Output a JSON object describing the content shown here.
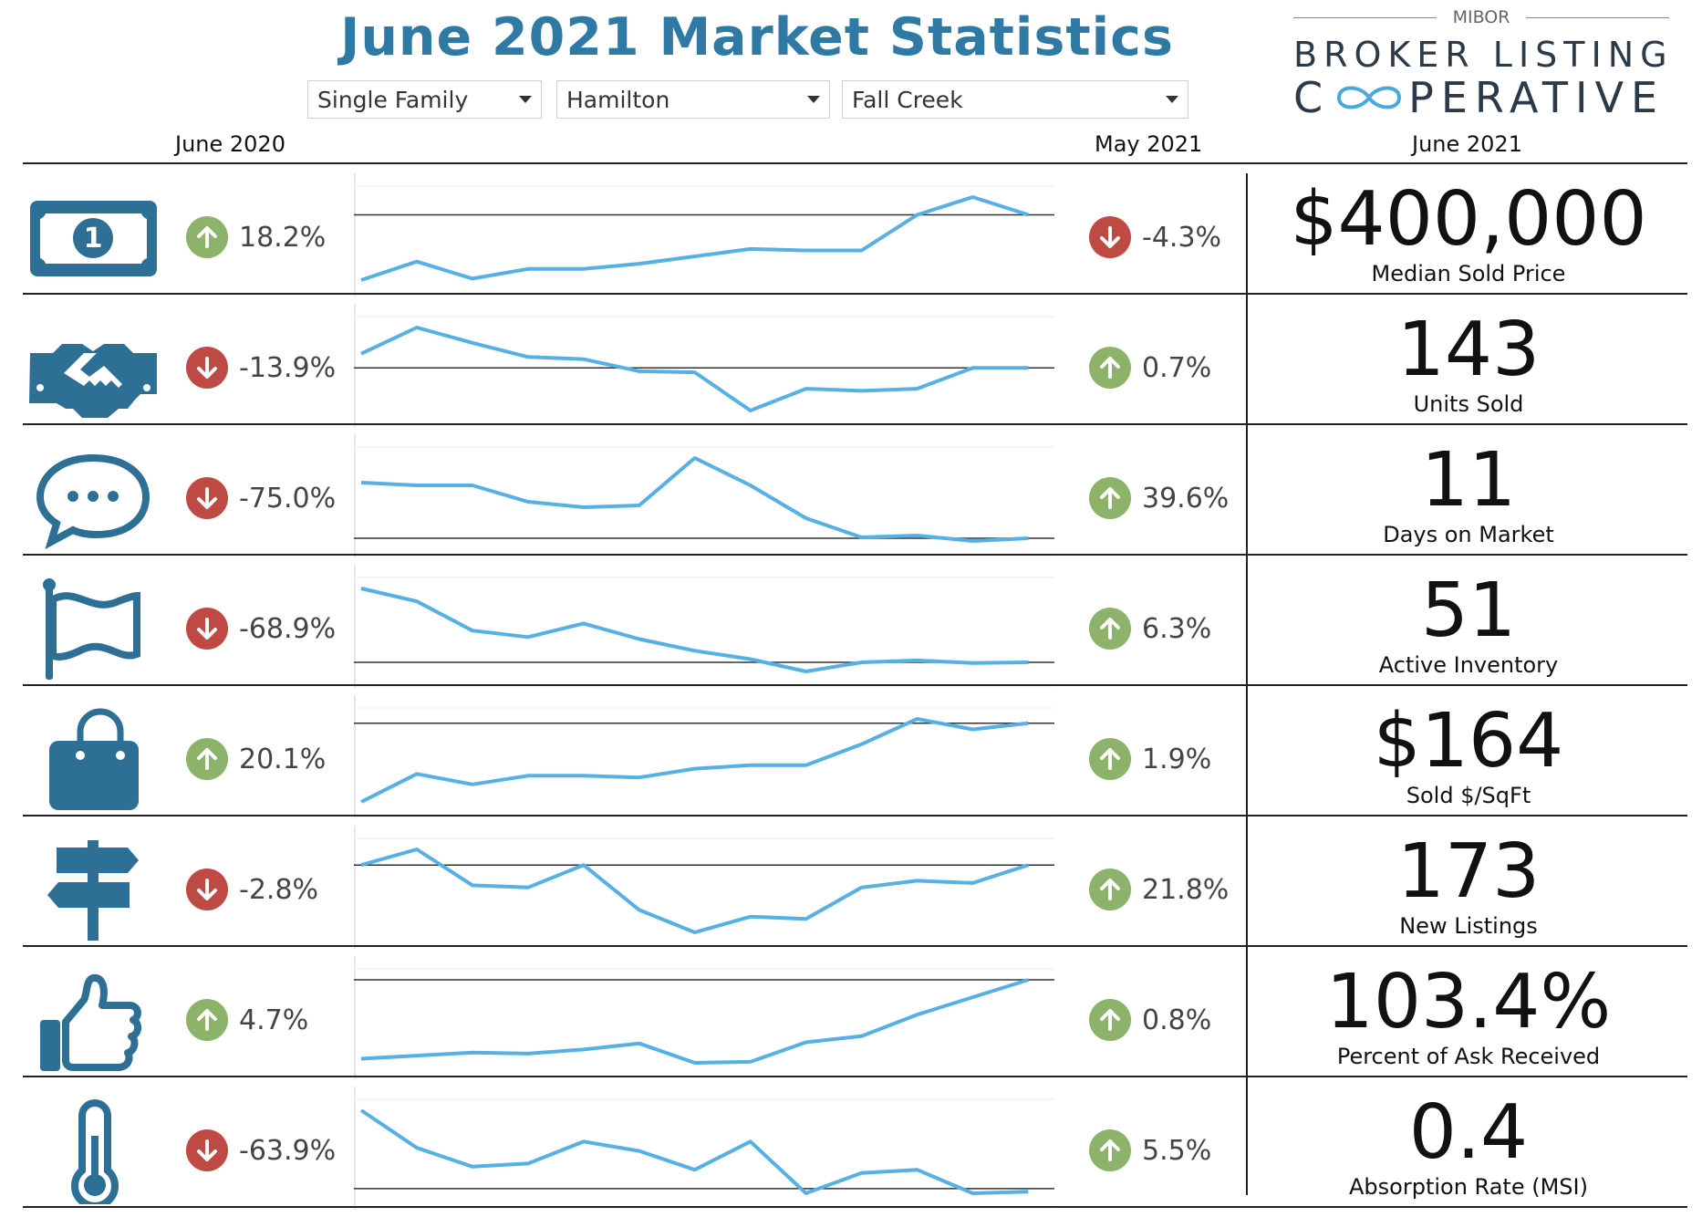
{
  "header": {
    "title": "June 2021 Market Statistics",
    "filters": [
      {
        "value": "Single Family"
      },
      {
        "value": "Hamilton"
      },
      {
        "value": "Fall Creek"
      }
    ],
    "logo": {
      "top": "MIBOR",
      "line1": "BROKER LISTING",
      "line2_a": "C",
      "line2_b": "PERATIVE"
    },
    "col_prev_year": "June 2020",
    "col_prev_month": "May 2021",
    "col_current": "June 2021"
  },
  "accent_color": "#2e7aa5",
  "up_color": "#8db269",
  "down_color": "#bf4a44",
  "sparkline_color": "#56b0e4",
  "metrics": [
    {
      "icon": "money-icon",
      "yoy": "18.2%",
      "yoy_dir": "up",
      "mom": "-4.3%",
      "mom_dir": "down",
      "value": "$400,000",
      "label": "Median Sold Price",
      "trend": [
        10,
        35,
        12,
        25,
        25,
        32,
        42,
        52,
        50,
        50,
        98,
        122,
        98
      ],
      "ref": 98
    },
    {
      "icon": "handshake-icon",
      "yoy": "-13.9%",
      "yoy_dir": "down",
      "mom": "0.7%",
      "mom_dir": "up",
      "value": "143",
      "label": "Units Sold",
      "trend": [
        66,
        90,
        76,
        63,
        61,
        50,
        49,
        14,
        34,
        32,
        34,
        53,
        53
      ],
      "ref": 53
    },
    {
      "icon": "chat-icon",
      "yoy": "-75.0%",
      "yoy_dir": "down",
      "mom": "39.6%",
      "mom_dir": "up",
      "value": "11",
      "label": "Days on Market",
      "trend": [
        61,
        58,
        58,
        40,
        34,
        36,
        88,
        58,
        22,
        1,
        3,
        -3,
        0
      ],
      "ref": 0
    },
    {
      "icon": "flag-icon",
      "yoy": "-68.9%",
      "yoy_dir": "down",
      "mom": "6.3%",
      "mom_dir": "up",
      "value": "51",
      "label": "Active Inventory",
      "trend": [
        114,
        94,
        49,
        39,
        60,
        36,
        18,
        5,
        -14,
        0,
        3,
        -1,
        0
      ],
      "ref": 0
    },
    {
      "icon": "bag-icon",
      "yoy": "20.1%",
      "yoy_dir": "up",
      "mom": "1.9%",
      "mom_dir": "up",
      "value": "$164",
      "label": "Sold $/SqFt",
      "trend": [
        10,
        42,
        30,
        40,
        40,
        38,
        48,
        52,
        52,
        76,
        105,
        93,
        100
      ],
      "ref": 100
    },
    {
      "icon": "signpost-icon",
      "yoy": "-2.8%",
      "yoy_dir": "down",
      "mom": "21.8%",
      "mom_dir": "up",
      "value": "173",
      "label": "New Listings",
      "trend": [
        0,
        14,
        -18,
        -20,
        0,
        -40,
        -60,
        -46,
        -48,
        -20,
        -14,
        -16,
        0
      ],
      "ref": 0
    },
    {
      "icon": "thumbs-up-icon",
      "yoy": "4.7%",
      "yoy_dir": "up",
      "mom": "0.8%",
      "mom_dir": "up",
      "value": "103.4%",
      "label": "Percent of Ask Received",
      "trend": [
        5,
        8,
        11,
        10,
        14,
        20,
        1,
        2,
        21,
        27,
        48,
        65,
        82
      ],
      "ref": 82
    },
    {
      "icon": "thermometer-icon",
      "yoy": "-63.9%",
      "yoy_dir": "down",
      "mom": "5.5%",
      "mom_dir": "up",
      "value": "0.4",
      "label": "Absorption Rate (MSI)",
      "trend": [
        50,
        26,
        14,
        16,
        30,
        24,
        12,
        30,
        -3,
        10,
        12,
        -3,
        -2
      ],
      "ref": 0
    }
  ]
}
